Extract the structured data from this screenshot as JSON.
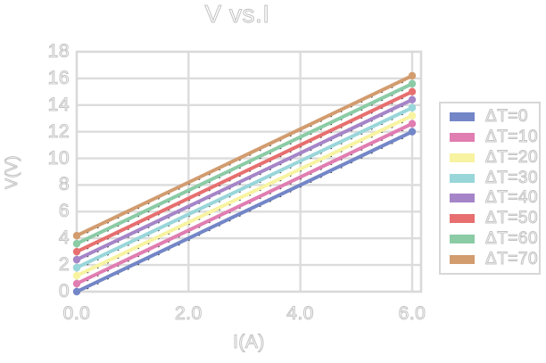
{
  "chart_data": {
    "type": "line",
    "title": "V vs.I",
    "xlabel": "I(A)",
    "ylabel": "V(V)",
    "xlim": [
      0,
      6.15
    ],
    "ylim": [
      0,
      18
    ],
    "grid": true,
    "legend_position": "right",
    "x": [
      0,
      1,
      2,
      3,
      4,
      5,
      6
    ],
    "x_ticks": [
      {
        "value": 0,
        "label": "0.0"
      },
      {
        "value": 2,
        "label": "2.0"
      },
      {
        "value": 4,
        "label": "4.0"
      },
      {
        "value": 6,
        "label": "6.0"
      }
    ],
    "y_ticks": [
      {
        "value": 0,
        "label": "0"
      },
      {
        "value": 2,
        "label": "2"
      },
      {
        "value": 4,
        "label": "4"
      },
      {
        "value": 6,
        "label": "6"
      },
      {
        "value": 8,
        "label": "8"
      },
      {
        "value": 10,
        "label": "10"
      },
      {
        "value": 12,
        "label": "12"
      },
      {
        "value": 14,
        "label": "14"
      },
      {
        "value": 16,
        "label": "16"
      },
      {
        "value": 18,
        "label": "18"
      }
    ],
    "series": [
      {
        "name": "ΔT=0",
        "color": "#7386C7",
        "values": [
          0.0,
          2.0,
          4.0,
          6.0,
          8.0,
          10.0,
          12.0
        ]
      },
      {
        "name": "ΔT=10",
        "color": "#E07DB1",
        "values": [
          0.6,
          2.6,
          4.6,
          6.6,
          8.6,
          10.6,
          12.6
        ]
      },
      {
        "name": "ΔT=20",
        "color": "#F7F3A1",
        "values": [
          1.2,
          3.2,
          5.2,
          7.2,
          9.2,
          11.2,
          13.2
        ]
      },
      {
        "name": "ΔT=30",
        "color": "#99D6DA",
        "values": [
          1.8,
          3.8,
          5.8,
          7.8,
          9.8,
          11.8,
          13.8
        ]
      },
      {
        "name": "ΔT=40",
        "color": "#A585C8",
        "values": [
          2.4,
          4.4,
          6.4,
          8.4,
          10.4,
          12.4,
          14.4
        ]
      },
      {
        "name": "ΔT=50",
        "color": "#E76F6F",
        "values": [
          3.0,
          5.0,
          7.0,
          9.0,
          11.0,
          13.0,
          15.0
        ]
      },
      {
        "name": "ΔT=60",
        "color": "#8BCBA6",
        "values": [
          3.6,
          5.6,
          7.6,
          9.6,
          11.6,
          13.6,
          15.6
        ]
      },
      {
        "name": "ΔT=70",
        "color": "#D29C6F",
        "values": [
          4.2,
          6.2,
          8.2,
          10.2,
          12.2,
          14.2,
          16.2
        ]
      }
    ],
    "colors": {
      "gridline": "#DCDCDC",
      "plot_frame": "#D9D9D9",
      "text_outline": "#C3C3C3",
      "legend_border": "#D7D7D7",
      "point_speck": "#333333",
      "background": "#FFFFFF"
    }
  }
}
